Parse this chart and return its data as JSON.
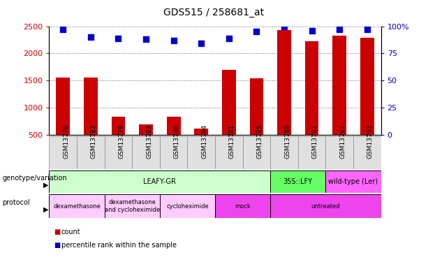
{
  "title": "GDS515 / 258681_at",
  "samples": [
    "GSM13778",
    "GSM13782",
    "GSM13779",
    "GSM13783",
    "GSM13780",
    "GSM13784",
    "GSM13781",
    "GSM13785",
    "GSM13789",
    "GSM13792",
    "GSM13791",
    "GSM13793"
  ],
  "counts": [
    1550,
    1550,
    840,
    690,
    840,
    620,
    1700,
    1540,
    2430,
    2220,
    2330,
    2290
  ],
  "percentile_ranks": [
    97,
    90,
    89,
    88,
    87,
    84,
    89,
    95,
    100,
    96,
    97,
    97
  ],
  "ylim_left": [
    500,
    2500
  ],
  "ylim_right": [
    0,
    100
  ],
  "yticks_left": [
    500,
    1000,
    1500,
    2000,
    2500
  ],
  "yticks_right": [
    0,
    25,
    50,
    75,
    100
  ],
  "ytick_labels_right": [
    "0",
    "25",
    "50",
    "75",
    "100%"
  ],
  "bar_color": "#cc0000",
  "dot_color": "#0000cc",
  "bar_width": 0.5,
  "dot_size": 30,
  "genotype_groups": [
    {
      "label": "LEAFY-GR",
      "start": 0,
      "end": 8,
      "color": "#ccffcc"
    },
    {
      "label": "35S::LFY",
      "start": 8,
      "end": 10,
      "color": "#66ff66"
    },
    {
      "label": "wild-type (Ler)",
      "start": 10,
      "end": 12,
      "color": "#ff66ff"
    }
  ],
  "protocol_groups": [
    {
      "label": "dexamethasone",
      "start": 0,
      "end": 2,
      "color": "#ffccff"
    },
    {
      "label": "dexamethasone\nand cycloheximide",
      "start": 2,
      "end": 4,
      "color": "#ffccff"
    },
    {
      "label": "cycloheximide",
      "start": 4,
      "end": 6,
      "color": "#ffccff"
    },
    {
      "label": "mock",
      "start": 6,
      "end": 8,
      "color": "#ee44ee"
    },
    {
      "label": "untreated",
      "start": 8,
      "end": 12,
      "color": "#ee44ee"
    }
  ],
  "tick_label_color_left": "#cc0000",
  "tick_label_color_right": "#0000cc",
  "legend_count_color": "#cc0000",
  "legend_pct_color": "#0000cc",
  "grid_style": "dotted",
  "grid_color": "#000000",
  "grid_alpha": 0.6,
  "title_fontsize": 10,
  "axis_fontsize": 8,
  "sample_tick_fontsize": 6.5,
  "row_label_fontsize": 7,
  "annotation_fontsize": 7,
  "sample_box_color": "#e0e0e0",
  "sample_box_edge": "#888888"
}
